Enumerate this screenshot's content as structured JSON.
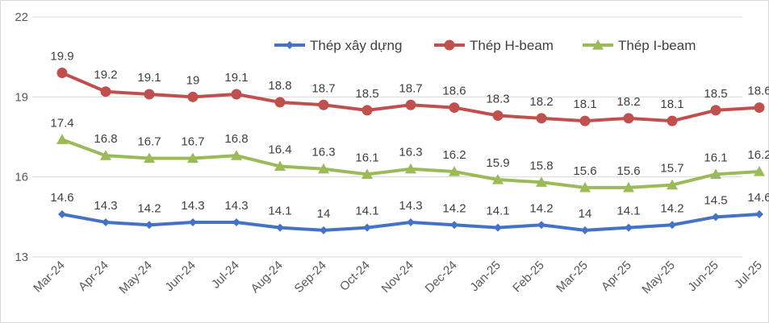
{
  "chart_data": {
    "type": "line",
    "title": "",
    "xlabel": "",
    "ylabel": "",
    "ylim": [
      13,
      22
    ],
    "yticks": [
      13,
      16,
      19,
      22
    ],
    "grid": "horizontal",
    "legend_position": "top-right",
    "categories": [
      "Mar-24",
      "Apr-24",
      "May-24",
      "Jun-24",
      "Jul-24",
      "Aug-24",
      "Sep-24",
      "Oct-24",
      "Nov-24",
      "Dec-24",
      "Jan-25",
      "Feb-25",
      "Mar-25",
      "Apr-25",
      "May-25",
      "Jun-25",
      "Jul-25"
    ],
    "series": [
      {
        "name": "Thép xây dựng",
        "color": "#4472c4",
        "marker": "diamond",
        "values": [
          14.6,
          14.3,
          14.2,
          14.3,
          14.3,
          14.1,
          14,
          14.1,
          14.3,
          14.2,
          14.1,
          14.2,
          14,
          14.1,
          14.2,
          14.5,
          14.6
        ],
        "labels": [
          "14.6",
          "14.3",
          "14.2",
          "14.3",
          "14.3",
          "14.1",
          "14",
          "14.1",
          "14.3",
          "14.2",
          "14.1",
          "14.2",
          "14",
          "14.1",
          "14.2",
          "14.5",
          "14.6"
        ]
      },
      {
        "name": "Thép H-beam",
        "color": "#c0504d",
        "marker": "circle",
        "values": [
          19.9,
          19.2,
          19.1,
          19,
          19.1,
          18.8,
          18.7,
          18.5,
          18.7,
          18.6,
          18.3,
          18.2,
          18.1,
          18.2,
          18.1,
          18.5,
          18.6
        ],
        "labels": [
          "19.9",
          "19.2",
          "19.1",
          "19",
          "19.1",
          "18.8",
          "18.7",
          "18.5",
          "18.7",
          "18.6",
          "18.3",
          "18.2",
          "18.1",
          "18.2",
          "18.1",
          "18.5",
          "18.6"
        ]
      },
      {
        "name": "Thép I-beam",
        "color": "#9bbb59",
        "marker": "triangle",
        "values": [
          17.4,
          16.8,
          16.7,
          16.7,
          16.8,
          16.4,
          16.3,
          16.1,
          16.3,
          16.2,
          15.9,
          15.8,
          15.6,
          15.6,
          15.7,
          16.1,
          16.2
        ],
        "labels": [
          "17.4",
          "16.8",
          "16.7",
          "16.7",
          "16.8",
          "16.4",
          "16.3",
          "16.1",
          "16.3",
          "16.2",
          "15.9",
          "15.8",
          "15.6",
          "15.6",
          "15.7",
          "16.1",
          "16.2"
        ]
      }
    ]
  }
}
